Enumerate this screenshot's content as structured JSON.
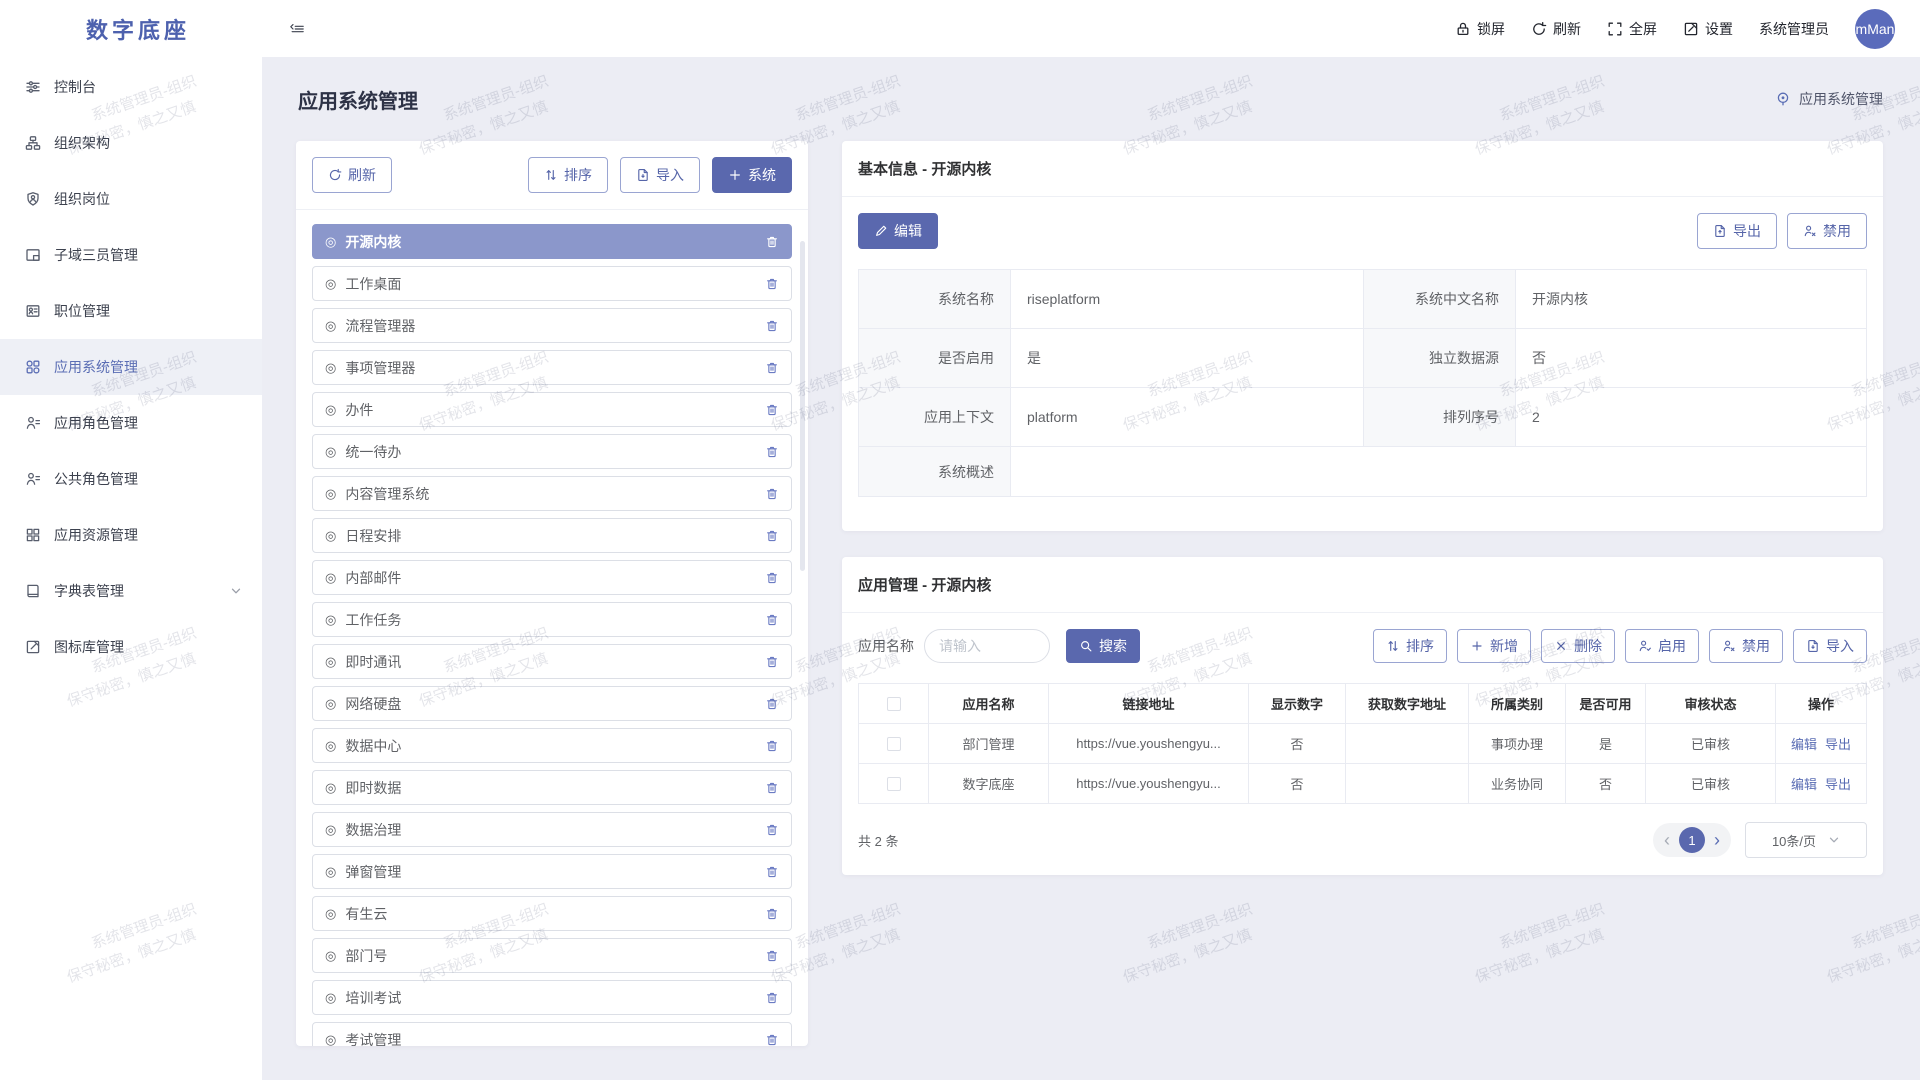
{
  "app": {
    "logo": "数字底座"
  },
  "header": {
    "actions": [
      {
        "label": "锁屏",
        "icon": "lock-icon"
      },
      {
        "label": "刷新",
        "icon": "refresh-icon"
      },
      {
        "label": "全屏",
        "icon": "fullscreen-icon"
      },
      {
        "label": "设置",
        "icon": "settings-icon"
      }
    ],
    "username": "系统管理员",
    "avatar_text": "mMan"
  },
  "sidebar": {
    "items": [
      {
        "label": "控制台",
        "icon": "console-icon"
      },
      {
        "label": "组织架构",
        "icon": "org-structure-icon"
      },
      {
        "label": "组织岗位",
        "icon": "org-post-icon"
      },
      {
        "label": "子域三员管理",
        "icon": "subdomain-icon"
      },
      {
        "label": "职位管理",
        "icon": "position-icon"
      },
      {
        "label": "应用系统管理",
        "icon": "app-system-icon",
        "selected": true
      },
      {
        "label": "应用角色管理",
        "icon": "app-role-icon"
      },
      {
        "label": "公共角色管理",
        "icon": "public-role-icon"
      },
      {
        "label": "应用资源管理",
        "icon": "app-resource-icon"
      },
      {
        "label": "字典表管理",
        "icon": "dict-icon",
        "expandable": true
      },
      {
        "label": "图标库管理",
        "icon": "icon-lib-icon"
      }
    ]
  },
  "page": {
    "title": "应用系统管理",
    "breadcrumb": "应用系统管理"
  },
  "system_panel": {
    "refresh_label": "刷新",
    "sort_label": "排序",
    "import_label": "导入",
    "add_system_label": "系统",
    "systems": [
      {
        "name": "开源内核",
        "selected": true
      },
      {
        "name": "工作桌面"
      },
      {
        "name": "流程管理器"
      },
      {
        "name": "事项管理器"
      },
      {
        "name": "办件"
      },
      {
        "name": "统一待办"
      },
      {
        "name": "内容管理系统"
      },
      {
        "name": "日程安排"
      },
      {
        "name": "内部邮件"
      },
      {
        "name": "工作任务"
      },
      {
        "name": "即时通讯"
      },
      {
        "name": "网络硬盘"
      },
      {
        "name": "数据中心"
      },
      {
        "name": "即时数据"
      },
      {
        "name": "数据治理"
      },
      {
        "name": "弹窗管理"
      },
      {
        "name": "有生云"
      },
      {
        "name": "部门号"
      },
      {
        "name": "培训考试"
      },
      {
        "name": "考试管理"
      }
    ]
  },
  "basic_info": {
    "title": "基本信息 - 开源内核",
    "edit_label": "编辑",
    "export_label": "导出",
    "disable_label": "禁用",
    "rows": [
      {
        "label1": "系统名称",
        "value1": "riseplatform",
        "label2": "系统中文名称",
        "value2": "开源内核"
      },
      {
        "label1": "是否启用",
        "value1": "是",
        "label2": "独立数据源",
        "value2": "否"
      },
      {
        "label1": "应用上下文",
        "value1": "platform",
        "label2": "排列序号",
        "value2": "2"
      }
    ],
    "overview_label": "系统概述",
    "overview_value": ""
  },
  "app_management": {
    "title": "应用管理 - 开源内核",
    "search_label": "应用名称",
    "search_placeholder": "请输入",
    "search_button_label": "搜索",
    "toolbar": {
      "sort_label": "排序",
      "add_label": "新增",
      "delete_label": "删除",
      "enable_label": "启用",
      "disable_label": "禁用",
      "import_label": "导入"
    },
    "table": {
      "columns": [
        "应用名称",
        "链接地址",
        "显示数字",
        "获取数字地址",
        "所属类别",
        "是否可用",
        "审核状态",
        "操作"
      ],
      "rows": [
        {
          "name": "部门管理",
          "url": "https://vue.youshengyu...",
          "show_number": "否",
          "number_url": "",
          "category": "事项办理",
          "available": "是",
          "audit": "已审核",
          "edit_label": "编辑",
          "export_label": "导出"
        },
        {
          "name": "数字底座",
          "url": "https://vue.youshengyu...",
          "show_number": "否",
          "number_url": "",
          "category": "业务协同",
          "available": "否",
          "audit": "已审核",
          "edit_label": "编辑",
          "export_label": "导出"
        }
      ]
    },
    "pagination": {
      "total": "共 2 条",
      "current_page": "1",
      "page_size": "10条/页"
    }
  },
  "watermark": {
    "line1": "系统管理员-组织",
    "line2": "保守秘密，慎之又慎"
  },
  "colors": {
    "primary": "#5a68ae",
    "selected_system_bg": "#8b97cb",
    "sidebar_selected_text": "#5a6db4",
    "link": "#5a6db4",
    "avatar_bg": "#5a6bbb",
    "main_bg": "#ecedf4",
    "logo_text": "#4d61ae"
  }
}
